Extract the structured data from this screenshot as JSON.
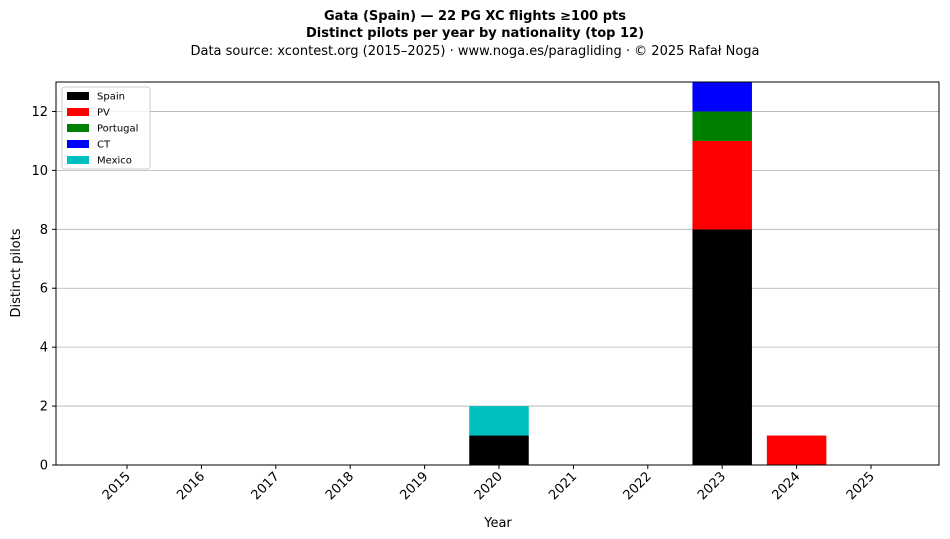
{
  "chart_data": {
    "type": "bar",
    "stacked": true,
    "title_line1": "Gata (Spain)  —  22 PG XC flights ≥100 pts",
    "title_line2": "Distinct pilots per year by nationality (top 12)",
    "subtitle": "Data source: xcontest.org (2015–2025)  ·  www.noga.es/paragliding  ·  © 2025 Rafał Noga",
    "xlabel": "Year",
    "ylabel": "Distinct pilots",
    "categories": [
      "2015",
      "2016",
      "2017",
      "2018",
      "2019",
      "2020",
      "2021",
      "2022",
      "2023",
      "2024",
      "2025"
    ],
    "ylim": [
      0,
      13
    ],
    "yticks": [
      0,
      2,
      4,
      6,
      8,
      10,
      12
    ],
    "grid": "y",
    "legend_position": "top-left",
    "series": [
      {
        "name": "Spain",
        "color": "#000000",
        "values": [
          0,
          0,
          0,
          0,
          0,
          1,
          0,
          0,
          8,
          0,
          0
        ]
      },
      {
        "name": "PV",
        "color": "#ff0000",
        "values": [
          0,
          0,
          0,
          0,
          0,
          0,
          0,
          0,
          3,
          1,
          0
        ]
      },
      {
        "name": "Portugal",
        "color": "#008000",
        "values": [
          0,
          0,
          0,
          0,
          0,
          0,
          0,
          0,
          1,
          0,
          0
        ]
      },
      {
        "name": "CT",
        "color": "#0000ff",
        "values": [
          0,
          0,
          0,
          0,
          0,
          0,
          0,
          0,
          1,
          0,
          0
        ]
      },
      {
        "name": "Mexico",
        "color": "#00bfbf",
        "values": [
          0,
          0,
          0,
          0,
          0,
          1,
          0,
          0,
          0,
          0,
          0
        ]
      }
    ]
  }
}
